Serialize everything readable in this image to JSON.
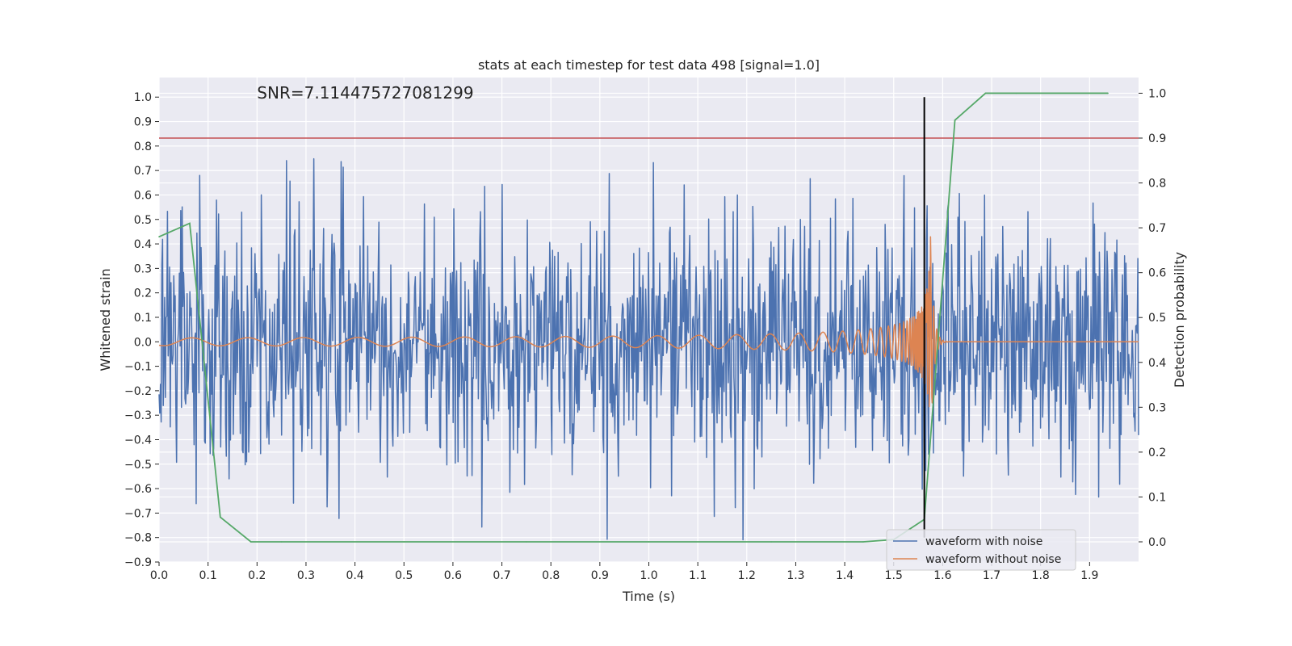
{
  "chart_data": {
    "type": "line",
    "title": "stats at each timestep for test data 498 [signal=1.0]",
    "annotation": "SNR=7.114475727081299",
    "xlabel": "Time (s)",
    "ylabel_left": "Whitened strain",
    "ylabel_right": "Detection probability",
    "xlim": [
      0.0,
      2.0
    ],
    "ylim_left": [
      -0.9,
      1.08
    ],
    "ylim_right": [
      -0.045,
      1.035
    ],
    "x_ticks": [
      0.0,
      0.1,
      0.2,
      0.3,
      0.4,
      0.5,
      0.6,
      0.7,
      0.8,
      0.9,
      1.0,
      1.1,
      1.2,
      1.3,
      1.4,
      1.5,
      1.6,
      1.7,
      1.8,
      1.9
    ],
    "x_tick_labels": [
      "0.0",
      "0.1",
      "0.2",
      "0.3",
      "0.4",
      "0.5",
      "0.6",
      "0.7",
      "0.8",
      "0.9",
      "1.0",
      "1.1",
      "1.2",
      "1.3",
      "1.4",
      "1.5",
      "1.6",
      "1.7",
      "1.8",
      "1.9"
    ],
    "y_left_ticks": [
      -0.9,
      -0.8,
      -0.7,
      -0.6,
      -0.5,
      -0.4,
      -0.3,
      -0.2,
      -0.1,
      0.0,
      0.1,
      0.2,
      0.3,
      0.4,
      0.5,
      0.6,
      0.7,
      0.8,
      0.9,
      1.0
    ],
    "y_left_tick_labels": [
      "−0.9",
      "−0.8",
      "−0.7",
      "−0.6",
      "−0.5",
      "−0.4",
      "−0.3",
      "−0.2",
      "−0.1",
      "0.0",
      "0.1",
      "0.2",
      "0.3",
      "0.4",
      "0.5",
      "0.6",
      "0.7",
      "0.8",
      "0.9",
      "1.0"
    ],
    "y_right_ticks": [
      0.0,
      0.1,
      0.2,
      0.3,
      0.4,
      0.5,
      0.6,
      0.7,
      0.8,
      0.9,
      1.0
    ],
    "y_right_tick_labels": [
      "0.0",
      "0.1",
      "0.2",
      "0.3",
      "0.4",
      "0.5",
      "0.6",
      "0.7",
      "0.8",
      "0.9",
      "1.0"
    ],
    "grid": true,
    "legend_position": "lower-right",
    "threshold_line": {
      "axis": "right",
      "y": 0.9,
      "color": "#c44e52"
    },
    "marker_line": {
      "x": 1.5625,
      "y_from": -0.8,
      "y_to": 1.0,
      "color": "#000000"
    },
    "series": [
      {
        "name": "waveform with noise",
        "axis": "left",
        "color": "#4c72b0",
        "noise": {
          "x_start": 0.0,
          "x_end": 2.0,
          "samples": 1400,
          "amplitude_std": 0.27,
          "seed": 498
        }
      },
      {
        "name": "waveform without noise",
        "axis": "left",
        "color": "#dd8452",
        "chirp": {
          "x_start": 0.0,
          "merger_time": 1.575,
          "ringdown_end": 1.61,
          "f0_hz": 8,
          "peak_amplitude": 0.45
        }
      },
      {
        "name": "",
        "axis": "right",
        "color": "#55a868",
        "x": [
          0.0,
          0.0625,
          0.125,
          0.1875,
          0.25,
          0.5,
          0.75,
          1.0,
          1.25,
          1.4375,
          1.5,
          1.5625,
          1.625,
          1.6875,
          1.75,
          1.9375
        ],
        "y": [
          0.68,
          0.71,
          0.055,
          0.0,
          0.0,
          0.0,
          0.0,
          0.0,
          0.0,
          0.0,
          0.005,
          0.05,
          0.94,
          1.0,
          1.0,
          1.0
        ]
      }
    ]
  }
}
